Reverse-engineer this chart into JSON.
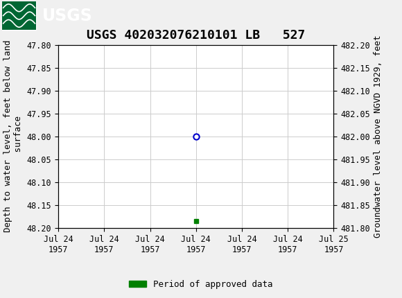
{
  "title": "USGS 402032076210101 LB   527",
  "ylabel_left": "Depth to water level, feet below land\n surface",
  "ylabel_right": "Groundwater level above NGVD 1929, feet",
  "ylim_left": [
    48.2,
    47.8
  ],
  "ylim_right": [
    481.8,
    482.2
  ],
  "yticks_left": [
    47.8,
    47.85,
    47.9,
    47.95,
    48.0,
    48.05,
    48.1,
    48.15,
    48.2
  ],
  "yticks_right": [
    482.2,
    482.15,
    482.1,
    482.05,
    482.0,
    481.95,
    481.9,
    481.85,
    481.8
  ],
  "xtick_labels": [
    "Jul 24\n1957",
    "Jul 24\n1957",
    "Jul 24\n1957",
    "Jul 24\n1957",
    "Jul 24\n1957",
    "Jul 24\n1957",
    "Jul 25\n1957"
  ],
  "data_point_x": 3.0,
  "data_point_y": 48.0,
  "data_point_color": "#0000cc",
  "green_square_x": 3.0,
  "green_square_y": 48.185,
  "green_color": "#008000",
  "header_color": "#006633",
  "header_text_color": "#ffffff",
  "background_color": "#f0f0f0",
  "plot_bg_color": "#ffffff",
  "grid_color": "#cccccc",
  "legend_label": "Period of approved data",
  "title_fontsize": 13,
  "axis_fontsize": 9,
  "tick_fontsize": 8.5,
  "xmin": 0,
  "xmax": 6
}
